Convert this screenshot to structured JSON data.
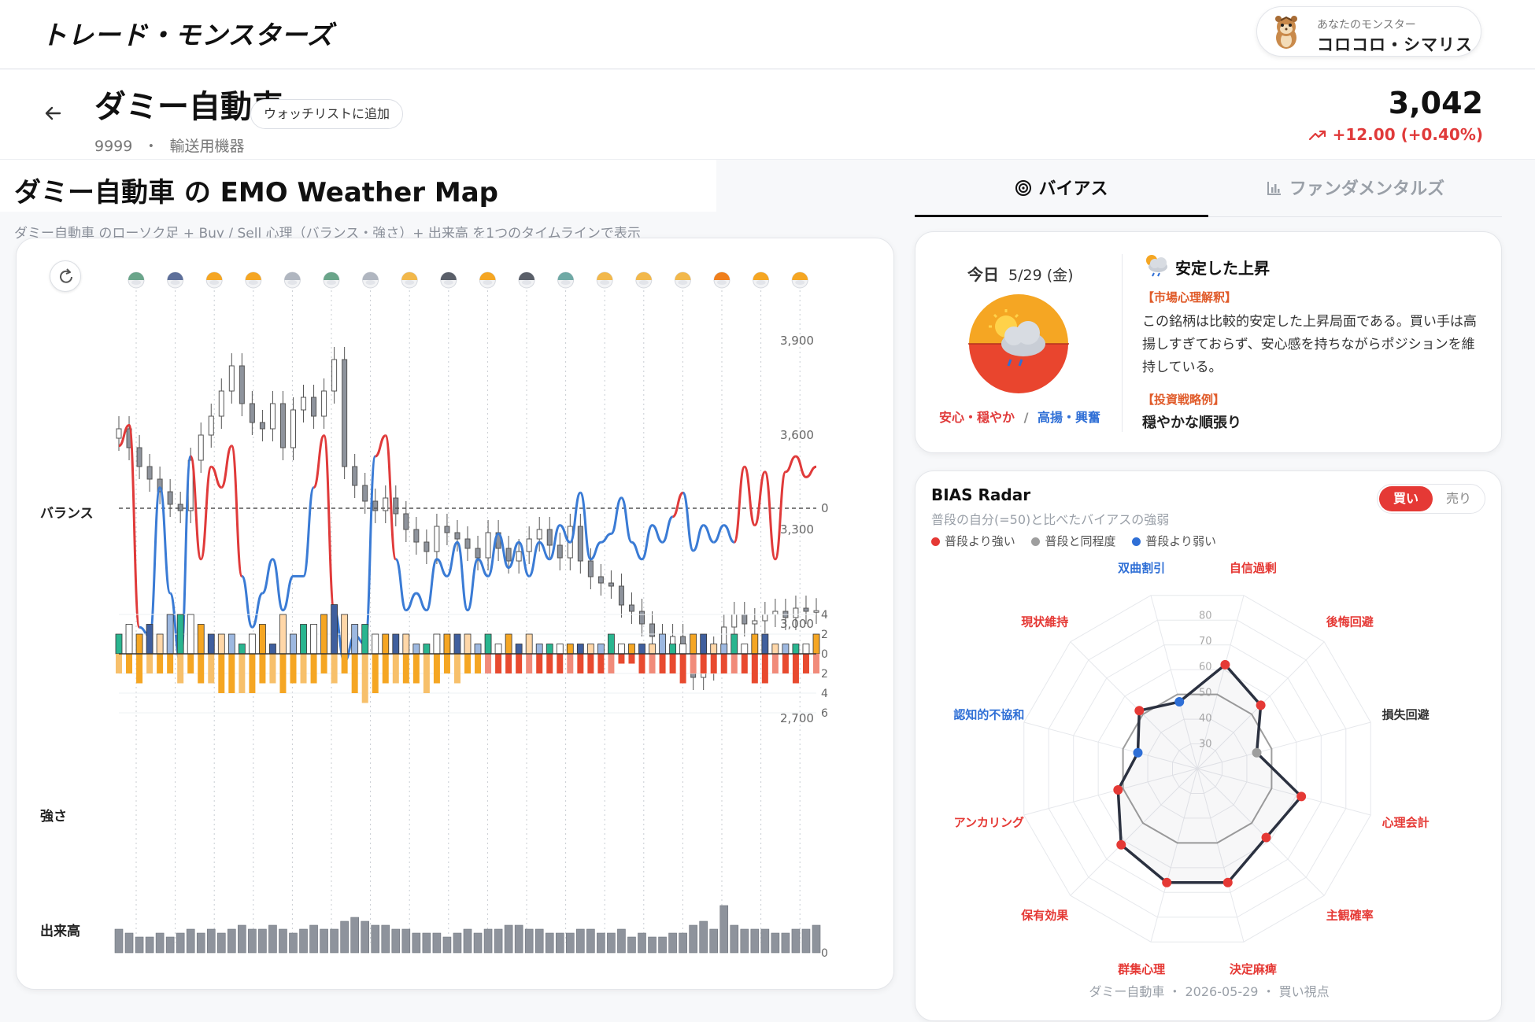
{
  "app": {
    "logo": "トレード・モンスターズ",
    "monster_caption": "あなたのモンスター",
    "monster_name": "コロコロ・シマリス"
  },
  "stock": {
    "name": "ダミー自動車",
    "watch_label": "ウォッチリストに追加",
    "code": "9999",
    "separator": "・",
    "sector": "輸送用機器",
    "price": "3,042",
    "change": "+12.00 (+0.40%)",
    "change_color": "#e03a3a"
  },
  "map": {
    "title": "ダミー自動車 の EMO Weather Map",
    "subtitle": "ダミー自動車 のローソク足 + Buy / Sell 心理（バランス・強さ）+ 出来高 を1つのタイムラインで表示",
    "row_labels": {
      "balance": "バランス",
      "strength": "強さ",
      "volume": "出来高"
    },
    "price_axis_ticks": [
      "3,900",
      "3,600",
      "3,300",
      "3,000",
      "2,700"
    ],
    "balance_zero_tick": "0",
    "strength_axis_ticks": [
      "4",
      "2",
      "0",
      "2",
      "4",
      "6"
    ],
    "volume_axis_ticks": [
      "0"
    ],
    "weather_icons": [
      "rain-sun",
      "night-cloud",
      "sun",
      "sun",
      "cloud",
      "rain-sun",
      "cloud",
      "sun-cloud",
      "storm",
      "sun",
      "storm",
      "rain",
      "sun-cloud",
      "sun-cloud",
      "sun-cloud",
      "sun-bright",
      "sun",
      "sun"
    ]
  },
  "chart_data": {
    "type": "line",
    "title": "",
    "price_ylim": [
      2700,
      3900
    ],
    "balance": {
      "series": [
        {
          "name": "",
          "color": "#e03a3a",
          "note": "positive side"
        },
        {
          "name": "",
          "color": "#3a7bd5",
          "note": "negative side"
        }
      ],
      "values": [
        0.6,
        0.8,
        -0.7,
        -0.75,
        0.2,
        -0.5,
        -0.9,
        0.5,
        -0.3,
        0.4,
        0.2,
        0.6,
        -0.4,
        -0.7,
        -0.5,
        -0.3,
        -0.6,
        -0.4,
        -0.4,
        0.2,
        0.7,
        -0.6,
        -0.9,
        -0.75,
        -0.8,
        0.5,
        0.7,
        -0.3,
        -0.6,
        -0.5,
        -0.6,
        -0.3,
        -0.4,
        -0.2,
        -0.6,
        -0.3,
        -0.4,
        -0.15,
        -0.35,
        -0.2,
        -0.4,
        -0.2,
        -0.3,
        -0.1,
        -0.2,
        0.15,
        -0.3,
        -0.2,
        -0.15,
        0.1,
        -0.2,
        -0.3,
        -0.1,
        -0.2,
        -0.05,
        0.15,
        -0.25,
        -0.1,
        -0.2,
        -0.1,
        -0.2,
        0.4,
        -0.1,
        0.35,
        -0.3,
        0.35,
        0.5,
        0.3,
        0.4
      ],
      "zero_line": 0
    },
    "candles": {
      "close": [
        3620,
        3560,
        3500,
        3460,
        3420,
        3380,
        3360,
        3520,
        3600,
        3660,
        3740,
        3820,
        3700,
        3640,
        3620,
        3700,
        3560,
        3680,
        3720,
        3660,
        3740,
        3840,
        3500,
        3440,
        3390,
        3360,
        3400,
        3350,
        3300,
        3260,
        3230,
        3310,
        3290,
        3270,
        3240,
        3210,
        3290,
        3240,
        3200,
        3230,
        3270,
        3300,
        3250,
        3210,
        3310,
        3200,
        3150,
        3130,
        3120,
        3060,
        3040,
        3000,
        2960,
        2920,
        2960,
        2880,
        2830,
        2860,
        2920,
        2990,
        3030,
        3000,
        3010,
        3030,
        3040,
        3020,
        3050,
        3040,
        3042
      ],
      "ylabel": ""
    },
    "strength": {
      "buy": [
        2,
        3,
        2,
        3,
        2,
        4,
        4,
        4,
        3,
        2,
        2,
        2,
        1,
        2,
        3,
        1,
        4,
        2,
        3,
        3,
        4,
        5,
        4,
        3,
        3,
        2,
        2,
        2,
        2,
        1,
        1,
        2,
        2,
        2,
        2,
        1,
        2,
        1,
        2,
        1,
        2,
        1,
        1,
        1,
        1,
        1,
        1,
        1,
        2,
        1,
        1,
        1,
        1,
        2,
        1,
        1,
        2,
        2,
        1,
        1,
        2,
        1,
        2,
        2,
        1,
        1,
        1,
        1,
        2
      ],
      "sell": [
        -2,
        -2,
        -3,
        -2,
        -2,
        -2,
        -3,
        -2,
        -3,
        -3,
        -4,
        -4,
        -4,
        -4,
        -3,
        -3,
        -4,
        -3,
        -3,
        -3,
        -2,
        -3,
        -2,
        -4,
        -5,
        -4,
        -3,
        -3,
        -3,
        -3,
        -4,
        -3,
        -2,
        -3,
        -2,
        -2,
        -2,
        -2,
        -2,
        -2,
        -2,
        -2,
        -2,
        -2,
        -2,
        -2,
        -2,
        -2,
        -2,
        -1,
        -1,
        -2,
        -2,
        -2,
        -2,
        -3,
        -2,
        -2,
        -2,
        -2,
        -2,
        -2,
        -3,
        -3,
        -2,
        -2,
        -3,
        -2,
        -2
      ],
      "ylim": [
        -6,
        4
      ]
    },
    "volume": {
      "values": [
        6,
        5,
        4,
        4,
        5,
        4,
        5,
        6,
        5,
        6,
        5,
        6,
        7,
        6,
        6,
        7,
        6,
        5,
        6,
        7,
        6,
        6,
        8,
        9,
        8,
        7,
        7,
        6,
        6,
        5,
        5,
        5,
        4,
        5,
        6,
        5,
        6,
        6,
        7,
        7,
        6,
        6,
        5,
        5,
        5,
        6,
        6,
        5,
        5,
        6,
        4,
        5,
        4,
        4,
        5,
        5,
        7,
        8,
        6,
        12,
        7,
        6,
        6,
        6,
        5,
        5,
        6,
        6,
        7
      ],
      "ylim": [
        0,
        12
      ]
    }
  },
  "today": {
    "label": "今日",
    "date": "5/29 (金)",
    "mood_left": "安心・穏やか",
    "mood_sep": "/",
    "mood_right": "高揚・興奮",
    "mood_left_color": "#e03a3a",
    "mood_right_color": "#2f6fd6",
    "weather_title": "安定した上昇",
    "analysis_tag": "【市場心理解釈】",
    "analysis": "この銘柄は比較的安定した上昇局面である。買い手は高揚しすぎておらず、安心感を持ちながらポジションを維持している。",
    "strategy_tag": "【投資戦略例】",
    "strategy": "穏やかな順張り"
  },
  "tabs": [
    {
      "label": "バイアス",
      "icon": "target-icon",
      "active": true
    },
    {
      "label": "ファンダメンタルズ",
      "icon": "bar-chart-icon",
      "active": false
    }
  ],
  "radar": {
    "title": "BIAS Radar",
    "subtitle": "普段の自分(=50)と比べたバイアスの強弱",
    "legend": [
      {
        "label": "普段より強い",
        "color": "#e53935"
      },
      {
        "label": "普段と同程度",
        "color": "#9e9e9e"
      },
      {
        "label": "普段より弱い",
        "color": "#2f6fd6"
      }
    ],
    "toggle_buy": "買い",
    "toggle_sell": "売り",
    "axes": [
      {
        "label": "自信過剰",
        "value": 62,
        "color": "#e53935"
      },
      {
        "label": "後悔回避",
        "value": 55,
        "color": "#e53935"
      },
      {
        "label": "損失回避",
        "value": 44,
        "color": "#9e9e9e"
      },
      {
        "label": "心理会計",
        "value": 62,
        "color": "#e53935"
      },
      {
        "label": "主観確率",
        "value": 58,
        "color": "#e53935"
      },
      {
        "label": "決定麻痺",
        "value": 66,
        "color": "#e53935"
      },
      {
        "label": "群集心理",
        "value": 66,
        "color": "#e53935"
      },
      {
        "label": "保有効果",
        "value": 62,
        "color": "#e53935"
      },
      {
        "label": "アンカリング",
        "value": 52,
        "color": "#e53935"
      },
      {
        "label": "認知的不協和",
        "value": 44,
        "color": "#2f6fd6"
      },
      {
        "label": "現状維持",
        "value": 52,
        "color": "#e53935"
      },
      {
        "label": "双曲割引",
        "value": 47,
        "color": "#2f6fd6"
      }
    ],
    "label_colors": [
      "#e53935",
      "#e53935",
      "#333333",
      "#e53935",
      "#e53935",
      "#e53935",
      "#e53935",
      "#e53935",
      "#e53935",
      "#2f6fd6",
      "#e53935",
      "#2f6fd6"
    ],
    "ticks": [
      "30",
      "40",
      "50",
      "60",
      "70",
      "80"
    ],
    "baseline": 50,
    "range": [
      20,
      90
    ],
    "footer": "ダミー自動車 ・ 2026-05-29 ・ 買い視点"
  }
}
